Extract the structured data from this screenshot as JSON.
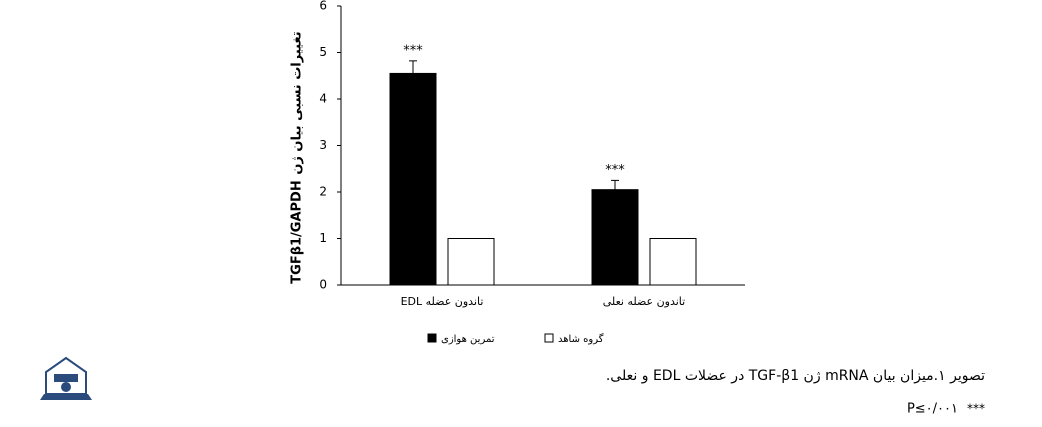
{
  "chart_data": {
    "type": "bar",
    "y_label_latin": "TGFβ1/GAPDH",
    "y_label_persian": "تغییرات نسبی بیان ژن",
    "categories": [
      "تاندون عضله EDL",
      "تاندون عضله نعلی"
    ],
    "series": [
      {
        "name": "تمرین هوازی",
        "color": "#000000",
        "values": [
          4.55,
          2.05
        ],
        "errors": [
          0.27,
          0.2
        ],
        "significance": [
          "***",
          "***"
        ]
      },
      {
        "name": "گروه شاهد",
        "color": "#ffffff",
        "values": [
          1,
          1
        ]
      }
    ],
    "ylim": [
      0,
      6
    ],
    "yticks": [
      0,
      1,
      2,
      3,
      4,
      5,
      6
    ]
  },
  "caption": "تصویر ۱.میزان بیان mRNA ژن TGF-β1 در عضلات EDL و نعلی.",
  "significance_note": {
    "marker": "***",
    "text": "P≤۰/۰۰۱"
  }
}
